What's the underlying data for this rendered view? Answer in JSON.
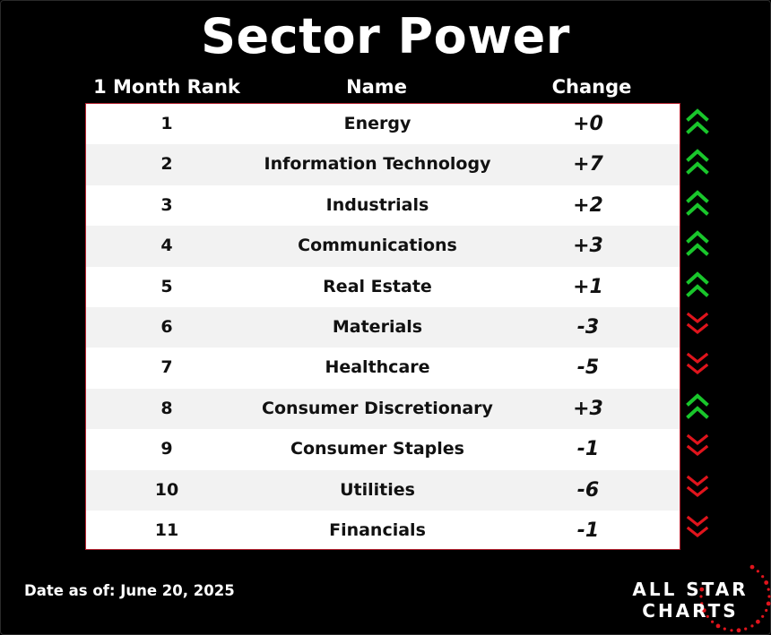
{
  "title": "Sector Power",
  "headers": {
    "rank": "1 Month Rank",
    "name": "Name",
    "change": "Change"
  },
  "colors": {
    "up": "#19c62b",
    "down": "#e0141c",
    "border": "#b52331"
  },
  "chart_data": {
    "type": "table",
    "title": "Sector Power",
    "columns": [
      "1 Month Rank",
      "Name",
      "Change"
    ],
    "rows": [
      {
        "rank": "1",
        "name": "Energy",
        "change": "+0",
        "direction": "up"
      },
      {
        "rank": "2",
        "name": "Information Technology",
        "change": "+7",
        "direction": "up"
      },
      {
        "rank": "3",
        "name": "Industrials",
        "change": "+2",
        "direction": "up"
      },
      {
        "rank": "4",
        "name": "Communications",
        "change": "+3",
        "direction": "up"
      },
      {
        "rank": "5",
        "name": "Real Estate",
        "change": "+1",
        "direction": "up"
      },
      {
        "rank": "6",
        "name": "Materials",
        "change": "-3",
        "direction": "down"
      },
      {
        "rank": "7",
        "name": "Healthcare",
        "change": "-5",
        "direction": "down"
      },
      {
        "rank": "8",
        "name": "Consumer Discretionary",
        "change": "+3",
        "direction": "up"
      },
      {
        "rank": "9",
        "name": "Consumer Staples",
        "change": "-1",
        "direction": "down"
      },
      {
        "rank": "10",
        "name": "Utilities",
        "change": "-6",
        "direction": "down"
      },
      {
        "rank": "11",
        "name": "Financials",
        "change": "-1",
        "direction": "down"
      }
    ]
  },
  "footer": {
    "date": "Date as of: June 20, 2025"
  },
  "logo": {
    "line1": "ALL STAR",
    "line2": "CHARTS"
  }
}
